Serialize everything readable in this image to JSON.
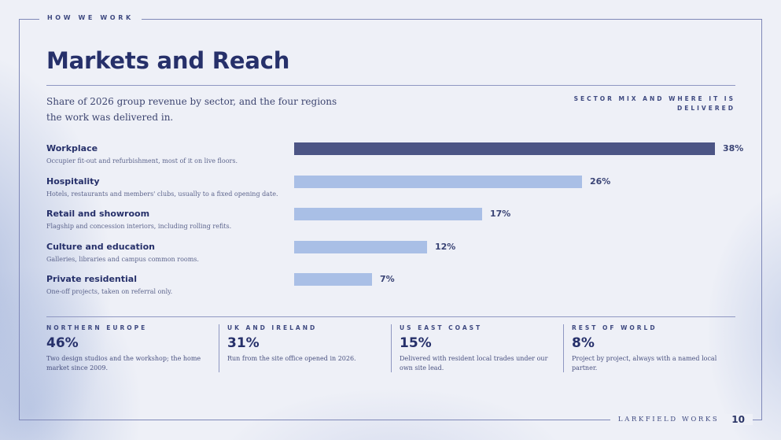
{
  "header": {
    "eyebrow": "HOW WE WORK",
    "title": "Markets and Reach"
  },
  "intro": {
    "subtitle": "Share of 2026 group revenue by sector, and the four regions the work was delivered in.",
    "kicker": "SECTOR MIX AND WHERE IT IS DELIVERED"
  },
  "colors": {
    "accent": "#4c5585",
    "bar": "#a9bfe6",
    "ink": "#26306a"
  },
  "chart_data": {
    "type": "bar",
    "orientation": "horizontal",
    "categories": [
      "Workplace",
      "Hospitality",
      "Retail and showroom",
      "Culture and education",
      "Private residential"
    ],
    "notes": [
      "Occupier fit-out and refurbishment, most of it on live floors.",
      "Hotels, restaurants and members' clubs, usually to a fixed opening date.",
      "Flagship and concession interiors, including rolling refits.",
      "Galleries, libraries and campus common rooms.",
      "One-off projects, taken on referral only."
    ],
    "values": [
      38,
      26,
      17,
      12,
      7
    ],
    "value_labels": [
      "38%",
      "26%",
      "17%",
      "12%",
      "7%"
    ],
    "unit": "%",
    "xlim": [
      0,
      38
    ],
    "highlight_index": 0,
    "grid": false,
    "legend": false
  },
  "regions": [
    {
      "name": "NORTHERN EUROPE",
      "value": "46%",
      "note": "Two design studios and the workshop; the home market since 2009."
    },
    {
      "name": "UK AND IRELAND",
      "value": "31%",
      "note": "Run from the site office opened in 2026."
    },
    {
      "name": "US EAST COAST",
      "value": "15%",
      "note": "Delivered with resident local trades under our own site lead."
    },
    {
      "name": "REST OF WORLD",
      "value": "8%",
      "note": "Project by project, always with a named local partner."
    }
  ],
  "footer": {
    "brand": "LARKFIELD WORKS",
    "page": "10"
  }
}
